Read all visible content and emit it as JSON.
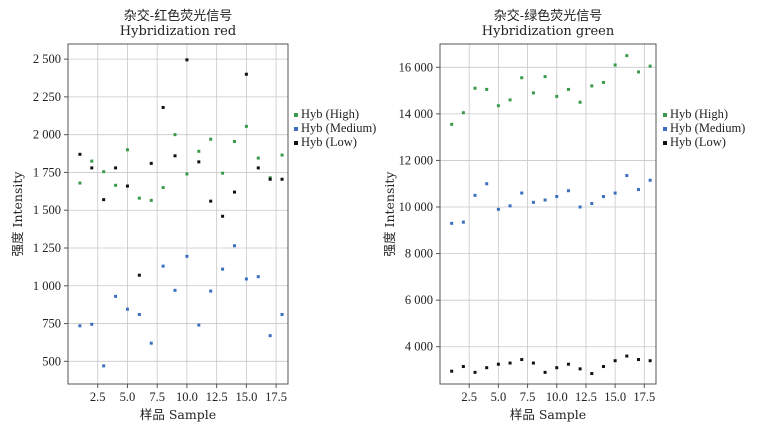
{
  "chart_data": [
    {
      "type": "scatter",
      "title": "杂交-红色荧光信号",
      "subtitle": "Hybridization red",
      "xlabel": "样品 Sample",
      "ylabel": "强度 Intensity",
      "xlim": [
        0,
        18.5
      ],
      "ylim": [
        350,
        2600
      ],
      "xticks": [
        2.5,
        5,
        7.5,
        10,
        12.5,
        15,
        17.5
      ],
      "xtick_labels": [
        "2.5",
        "5.0",
        "7.5",
        "10.0",
        "12.5",
        "15.0",
        "17.5"
      ],
      "yticks": [
        500,
        750,
        1000,
        1250,
        1500,
        1750,
        2000,
        2250,
        2500
      ],
      "ytick_labels": [
        "500",
        "750",
        "1 000",
        "1 250",
        "1 500",
        "1 750",
        "2 000",
        "2 250",
        "2 500"
      ],
      "grid": true,
      "legend": "right",
      "x": [
        1,
        2,
        3,
        4,
        5,
        6,
        7,
        8,
        9,
        10,
        11,
        12,
        13,
        14,
        15,
        16,
        17,
        18
      ],
      "series": [
        {
          "name": "Hyb (High)",
          "color": "#3a9a4a",
          "values": [
            1680,
            1825,
            1755,
            1665,
            1900,
            1580,
            1565,
            1650,
            2000,
            1740,
            1890,
            1970,
            1745,
            1955,
            2055,
            1845,
            1715,
            1865
          ]
        },
        {
          "name": "Hyb (Medium)",
          "color": "#3a6fc0",
          "values": [
            735,
            745,
            470,
            930,
            845,
            810,
            620,
            1130,
            970,
            1195,
            740,
            965,
            1110,
            1265,
            1045,
            1060,
            670,
            810
          ]
        },
        {
          "name": "Hyb (Low)",
          "color": "#111111",
          "values": [
            1870,
            1780,
            1570,
            1780,
            1660,
            1070,
            1810,
            2180,
            1860,
            2495,
            1820,
            1560,
            1460,
            1620,
            2400,
            1780,
            1705,
            1705
          ]
        }
      ]
    },
    {
      "type": "scatter",
      "title": "杂交-绿色荧光信号",
      "subtitle": "Hybridization green",
      "xlabel": "样品 Sample",
      "ylabel": "强度 Intensity",
      "xlim": [
        0,
        18.5
      ],
      "ylim": [
        2400,
        17000
      ],
      "xticks": [
        2.5,
        5,
        7.5,
        10,
        12.5,
        15,
        17.5
      ],
      "xtick_labels": [
        "2.5",
        "5.0",
        "7.5",
        "10.0",
        "12.5",
        "15.0",
        "17.5"
      ],
      "yticks": [
        4000,
        6000,
        8000,
        10000,
        12000,
        14000,
        16000
      ],
      "ytick_labels": [
        "4 000",
        "6 000",
        "8 000",
        "10 000",
        "12 000",
        "14 000",
        "16 000"
      ],
      "grid": true,
      "legend": "right",
      "x": [
        1,
        2,
        3,
        4,
        5,
        6,
        7,
        8,
        9,
        10,
        11,
        12,
        13,
        14,
        15,
        16,
        17,
        18
      ],
      "series": [
        {
          "name": "Hyb (High)",
          "color": "#3a9a4a",
          "values": [
            13550,
            14050,
            15100,
            15050,
            14350,
            14600,
            15550,
            14900,
            15600,
            14750,
            15050,
            14500,
            15200,
            15350,
            16100,
            16500,
            15800,
            16050
          ]
        },
        {
          "name": "Hyb (Medium)",
          "color": "#3a6fc0",
          "values": [
            9300,
            9350,
            10500,
            11000,
            9900,
            10050,
            10600,
            10200,
            10300,
            10450,
            10700,
            10000,
            10150,
            10450,
            10600,
            11350,
            10750,
            11150
          ]
        },
        {
          "name": "Hyb (Low)",
          "color": "#111111",
          "values": [
            2950,
            3150,
            2900,
            3100,
            3250,
            3300,
            3450,
            3300,
            2900,
            3100,
            3250,
            3050,
            2850,
            3150,
            3400,
            3600,
            3450,
            3400
          ]
        }
      ]
    }
  ]
}
